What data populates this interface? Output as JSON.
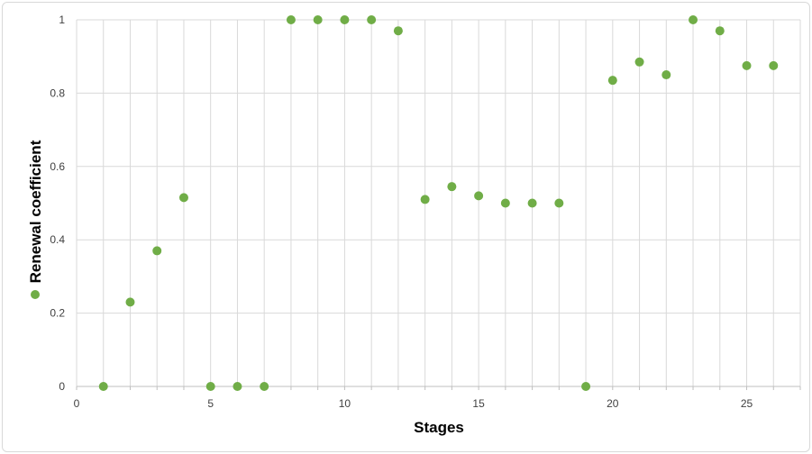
{
  "chart_data": {
    "type": "scatter",
    "title": "",
    "xlabel": "Stages",
    "ylabel": "Renewal coefficient",
    "xlim": [
      0,
      27
    ],
    "ylim": [
      0,
      1
    ],
    "xticks": [
      0,
      5,
      10,
      15,
      20,
      25
    ],
    "yticks": [
      0,
      0.2,
      0.4,
      0.6,
      0.8,
      1
    ],
    "grid": true,
    "legend": "left, rotated with y-axis label",
    "colors": {
      "marker": "#70ad47",
      "grid": "#d9d9d9",
      "axis": "#bfbfbf"
    },
    "series": [
      {
        "x": [
          1,
          2,
          3,
          4,
          5,
          6,
          7,
          8,
          9,
          10,
          11,
          12,
          13,
          14,
          15,
          16,
          17,
          18,
          19,
          20,
          21,
          22,
          23,
          24,
          25,
          26
        ],
        "y": [
          0,
          0.23,
          0.37,
          0.515,
          0,
          0,
          0,
          1,
          1,
          1,
          1,
          0.97,
          0.51,
          0.545,
          0.52,
          0.5,
          0.5,
          0.5,
          0,
          0.835,
          0.885,
          0.85,
          1,
          0.97,
          0.875,
          0.875
        ]
      }
    ]
  }
}
